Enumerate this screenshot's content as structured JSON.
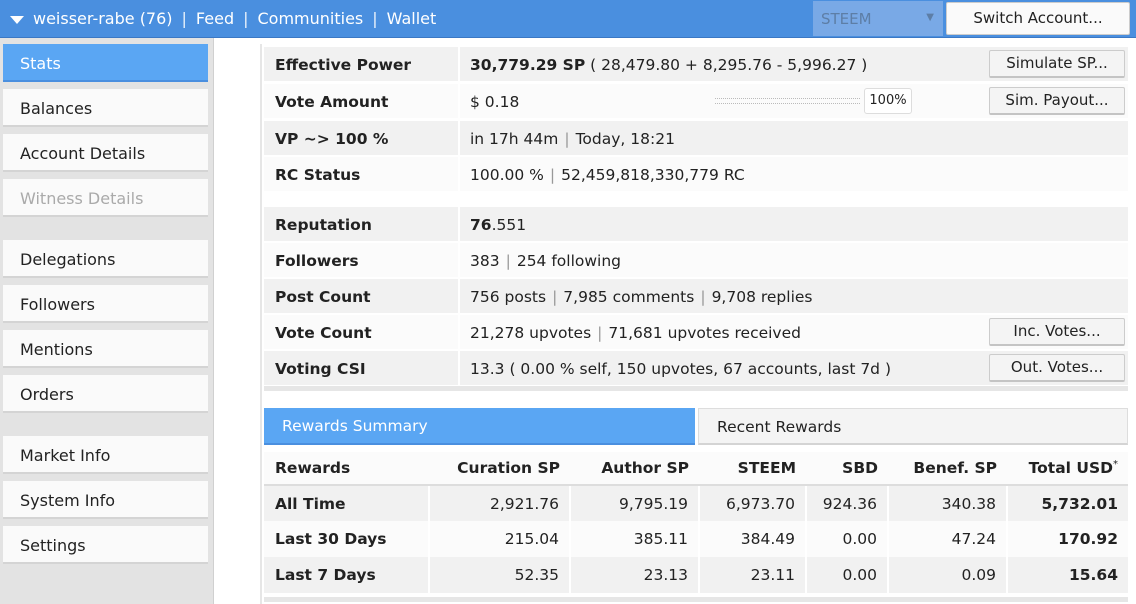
{
  "topbar": {
    "account": "weisser-rabe (76)",
    "nav": [
      "Feed",
      "Communities",
      "Wallet"
    ],
    "separator": "|",
    "network": "STEEM",
    "switch_label": "Switch Account..."
  },
  "sidebar": {
    "groups": [
      [
        "Stats",
        "Balances",
        "Account Details",
        "Witness Details"
      ],
      [
        "Delegations",
        "Followers",
        "Mentions",
        "Orders"
      ],
      [
        "Market Info",
        "System Info",
        "Settings"
      ]
    ],
    "active": "Stats",
    "disabled": "Witness Details"
  },
  "stats": {
    "effective_power": {
      "label": "Effective Power",
      "value_bold": "30,779.29 SP",
      "value_rest": "( 28,479.80 + 8,295.76 - 5,996.27 )",
      "button": "Simulate SP..."
    },
    "vote_amount": {
      "label": "Vote Amount",
      "value": "$ 0.18",
      "percent": "100%",
      "percent_value": 100,
      "button": "Sim. Payout..."
    },
    "vp": {
      "label": "VP ~> 100 %",
      "time": "in 17h 44m",
      "when": "Today, 18:21"
    },
    "rc": {
      "label": "RC Status",
      "percent": "100.00 %",
      "amount": "52,459,818,330,779 RC"
    },
    "reputation": {
      "label": "Reputation",
      "int": "76",
      "dec": ".551"
    },
    "followers": {
      "label": "Followers",
      "count": "383",
      "following": "254 following"
    },
    "post_count": {
      "label": "Post Count",
      "posts": "756 posts",
      "comments": "7,985 comments",
      "replies": "9,708 replies"
    },
    "vote_count": {
      "label": "Vote Count",
      "upvotes": "21,278 upvotes",
      "received": "71,681 upvotes received",
      "button": "Inc. Votes..."
    },
    "voting_csi": {
      "label": "Voting CSI",
      "value": "13.3 ( 0.00 % self, 150 upvotes, 67 accounts, last 7d )",
      "button": "Out. Votes..."
    }
  },
  "rewards": {
    "tab_active": "Rewards Summary",
    "tab_other": "Recent Rewards",
    "headers": [
      "Rewards",
      "Curation SP",
      "Author SP",
      "STEEM",
      "SBD",
      "Benef. SP",
      "Total USD"
    ],
    "footnote_mark": "*",
    "rows": [
      [
        "All Time",
        "2,921.76",
        "9,795.19",
        "6,973.70",
        "924.36",
        "340.38",
        "5,732.01"
      ],
      [
        "Last 30 Days",
        "215.04",
        "385.11",
        "384.49",
        "0.00",
        "47.24",
        "170.92"
      ],
      [
        "Last 7 Days",
        "52.35",
        "23.13",
        "23.11",
        "0.00",
        "0.09",
        "15.64"
      ]
    ]
  }
}
